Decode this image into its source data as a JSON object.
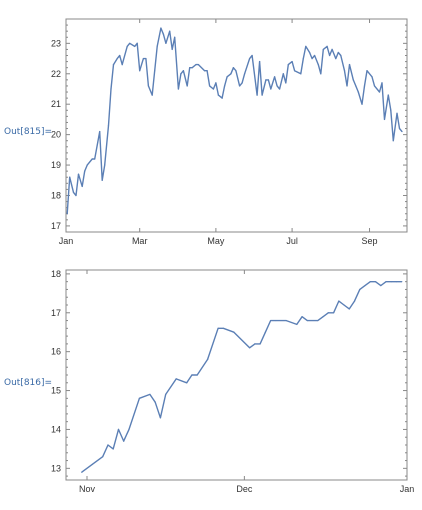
{
  "cells": [
    {
      "label": "Out[815]="
    },
    {
      "label": "Out[816]="
    }
  ],
  "colors": {
    "line": "#5b7fb5",
    "frame": "#888888",
    "cell_label": "#3a6aa6"
  },
  "chart_data": [
    {
      "type": "line",
      "xaxis": "date",
      "xlim": [
        "2019-01-01",
        "2019-10-01"
      ],
      "ylim": [
        16.8,
        23.8
      ],
      "x_ticks": [
        {
          "date": "2019-01-01",
          "label": "Jan"
        },
        {
          "date": "2019-03-01",
          "label": "Mar"
        },
        {
          "date": "2019-05-01",
          "label": "May"
        },
        {
          "date": "2019-07-01",
          "label": "Jul"
        },
        {
          "date": "2019-09-01",
          "label": "Sep"
        }
      ],
      "y_ticks": [
        17,
        18,
        19,
        20,
        21,
        22,
        23
      ],
      "series": [
        {
          "x": [
            "2019-01-02",
            "2019-01-04",
            "2019-01-07",
            "2019-01-09",
            "2019-01-11",
            "2019-01-14",
            "2019-01-16",
            "2019-01-18",
            "2019-01-22",
            "2019-01-24",
            "2019-01-28",
            "2019-01-30",
            "2019-02-01",
            "2019-02-04",
            "2019-02-06",
            "2019-02-08",
            "2019-02-11",
            "2019-02-13",
            "2019-02-15",
            "2019-02-19",
            "2019-02-21",
            "2019-02-25",
            "2019-02-27",
            "2019-03-01",
            "2019-03-04",
            "2019-03-06",
            "2019-03-08",
            "2019-03-11",
            "2019-03-13",
            "2019-03-15",
            "2019-03-18",
            "2019-03-20",
            "2019-03-22",
            "2019-03-25",
            "2019-03-27",
            "2019-03-29",
            "2019-04-01",
            "2019-04-03",
            "2019-04-05",
            "2019-04-08",
            "2019-04-10",
            "2019-04-12",
            "2019-04-15",
            "2019-04-17",
            "2019-04-22",
            "2019-04-24",
            "2019-04-26",
            "2019-04-29",
            "2019-05-01",
            "2019-05-03",
            "2019-05-06",
            "2019-05-08",
            "2019-05-10",
            "2019-05-13",
            "2019-05-15",
            "2019-05-17",
            "2019-05-20",
            "2019-05-22",
            "2019-05-24",
            "2019-05-28",
            "2019-05-30",
            "2019-06-03",
            "2019-06-05",
            "2019-06-07",
            "2019-06-10",
            "2019-06-12",
            "2019-06-14",
            "2019-06-17",
            "2019-06-19",
            "2019-06-21",
            "2019-06-24",
            "2019-06-26",
            "2019-06-28",
            "2019-07-01",
            "2019-07-03",
            "2019-07-08",
            "2019-07-10",
            "2019-07-12",
            "2019-07-15",
            "2019-07-17",
            "2019-07-19",
            "2019-07-22",
            "2019-07-24",
            "2019-07-26",
            "2019-07-29",
            "2019-07-31",
            "2019-08-02",
            "2019-08-05",
            "2019-08-07",
            "2019-08-09",
            "2019-08-12",
            "2019-08-14",
            "2019-08-16",
            "2019-08-19",
            "2019-08-21",
            "2019-08-23",
            "2019-08-26",
            "2019-08-28",
            "2019-08-30",
            "2019-09-03",
            "2019-09-05",
            "2019-09-09",
            "2019-09-11",
            "2019-09-13",
            "2019-09-16",
            "2019-09-18",
            "2019-09-20",
            "2019-09-23",
            "2019-09-25",
            "2019-09-27"
          ],
          "y": [
            17.4,
            18.6,
            18.1,
            18.0,
            18.7,
            18.3,
            18.8,
            19.0,
            19.2,
            19.2,
            20.1,
            18.5,
            19.0,
            20.3,
            21.5,
            22.3,
            22.5,
            22.6,
            22.3,
            22.9,
            23.0,
            22.9,
            23.0,
            22.1,
            22.5,
            22.5,
            21.6,
            21.3,
            22.1,
            22.9,
            23.5,
            23.3,
            23.0,
            23.4,
            22.8,
            23.2,
            21.5,
            22.0,
            22.1,
            21.6,
            22.2,
            22.2,
            22.3,
            22.3,
            22.1,
            22.1,
            21.6,
            21.5,
            21.7,
            21.3,
            21.2,
            21.6,
            21.9,
            22.0,
            22.2,
            22.1,
            21.6,
            21.7,
            22.0,
            22.5,
            22.6,
            21.3,
            22.4,
            21.3,
            21.8,
            21.8,
            21.5,
            21.9,
            21.6,
            21.5,
            22.0,
            21.7,
            22.3,
            22.4,
            22.1,
            22.0,
            22.5,
            22.9,
            22.7,
            22.5,
            22.6,
            22.3,
            22.0,
            22.8,
            22.9,
            22.6,
            22.8,
            22.5,
            22.7,
            22.6,
            22.1,
            21.6,
            22.3,
            21.8,
            21.6,
            21.4,
            21.0,
            21.6,
            22.1,
            21.9,
            21.6,
            21.4,
            21.7,
            20.5,
            21.3,
            20.8,
            19.8,
            20.7,
            20.2,
            20.1
          ]
        }
      ]
    },
    {
      "type": "line",
      "xaxis": "date",
      "xlim": [
        "2019-10-28",
        "2020-01-01"
      ],
      "ylim": [
        12.7,
        18.1
      ],
      "x_ticks": [
        {
          "date": "2019-11-01",
          "label": "Nov"
        },
        {
          "date": "2019-12-01",
          "label": "Dec"
        },
        {
          "date": "2020-01-01",
          "label": "Jan"
        }
      ],
      "y_ticks": [
        13,
        14,
        15,
        16,
        17,
        18
      ],
      "series": [
        {
          "x": [
            "2019-10-31",
            "2019-11-02",
            "2019-11-04",
            "2019-11-05",
            "2019-11-06",
            "2019-11-07",
            "2019-11-08",
            "2019-11-09",
            "2019-11-11",
            "2019-11-13",
            "2019-11-14",
            "2019-11-15",
            "2019-11-16",
            "2019-11-18",
            "2019-11-20",
            "2019-11-21",
            "2019-11-22",
            "2019-11-24",
            "2019-11-26",
            "2019-11-27",
            "2019-11-29",
            "2019-12-02",
            "2019-12-03",
            "2019-12-04",
            "2019-12-05",
            "2019-12-06",
            "2019-12-07",
            "2019-12-09",
            "2019-12-11",
            "2019-12-12",
            "2019-12-13",
            "2019-12-15",
            "2019-12-16",
            "2019-12-17",
            "2019-12-18",
            "2019-12-19",
            "2019-12-20",
            "2019-12-21",
            "2019-12-22",
            "2019-12-23",
            "2019-12-24",
            "2019-12-25",
            "2019-12-26",
            "2019-12-27",
            "2019-12-28",
            "2019-12-29",
            "2019-12-30",
            "2019-12-31"
          ],
          "y": [
            12.9,
            13.1,
            13.3,
            13.6,
            13.5,
            14.0,
            13.7,
            14.0,
            14.8,
            14.9,
            14.7,
            14.3,
            14.9,
            15.3,
            15.2,
            15.4,
            15.4,
            15.8,
            16.6,
            16.6,
            16.5,
            16.1,
            16.2,
            16.2,
            16.5,
            16.8,
            16.8,
            16.8,
            16.7,
            16.9,
            16.8,
            16.8,
            16.9,
            17.0,
            17.0,
            17.3,
            17.2,
            17.1,
            17.3,
            17.6,
            17.7,
            17.8,
            17.8,
            17.7,
            17.8,
            17.8,
            17.8,
            17.8
          ]
        }
      ]
    }
  ]
}
